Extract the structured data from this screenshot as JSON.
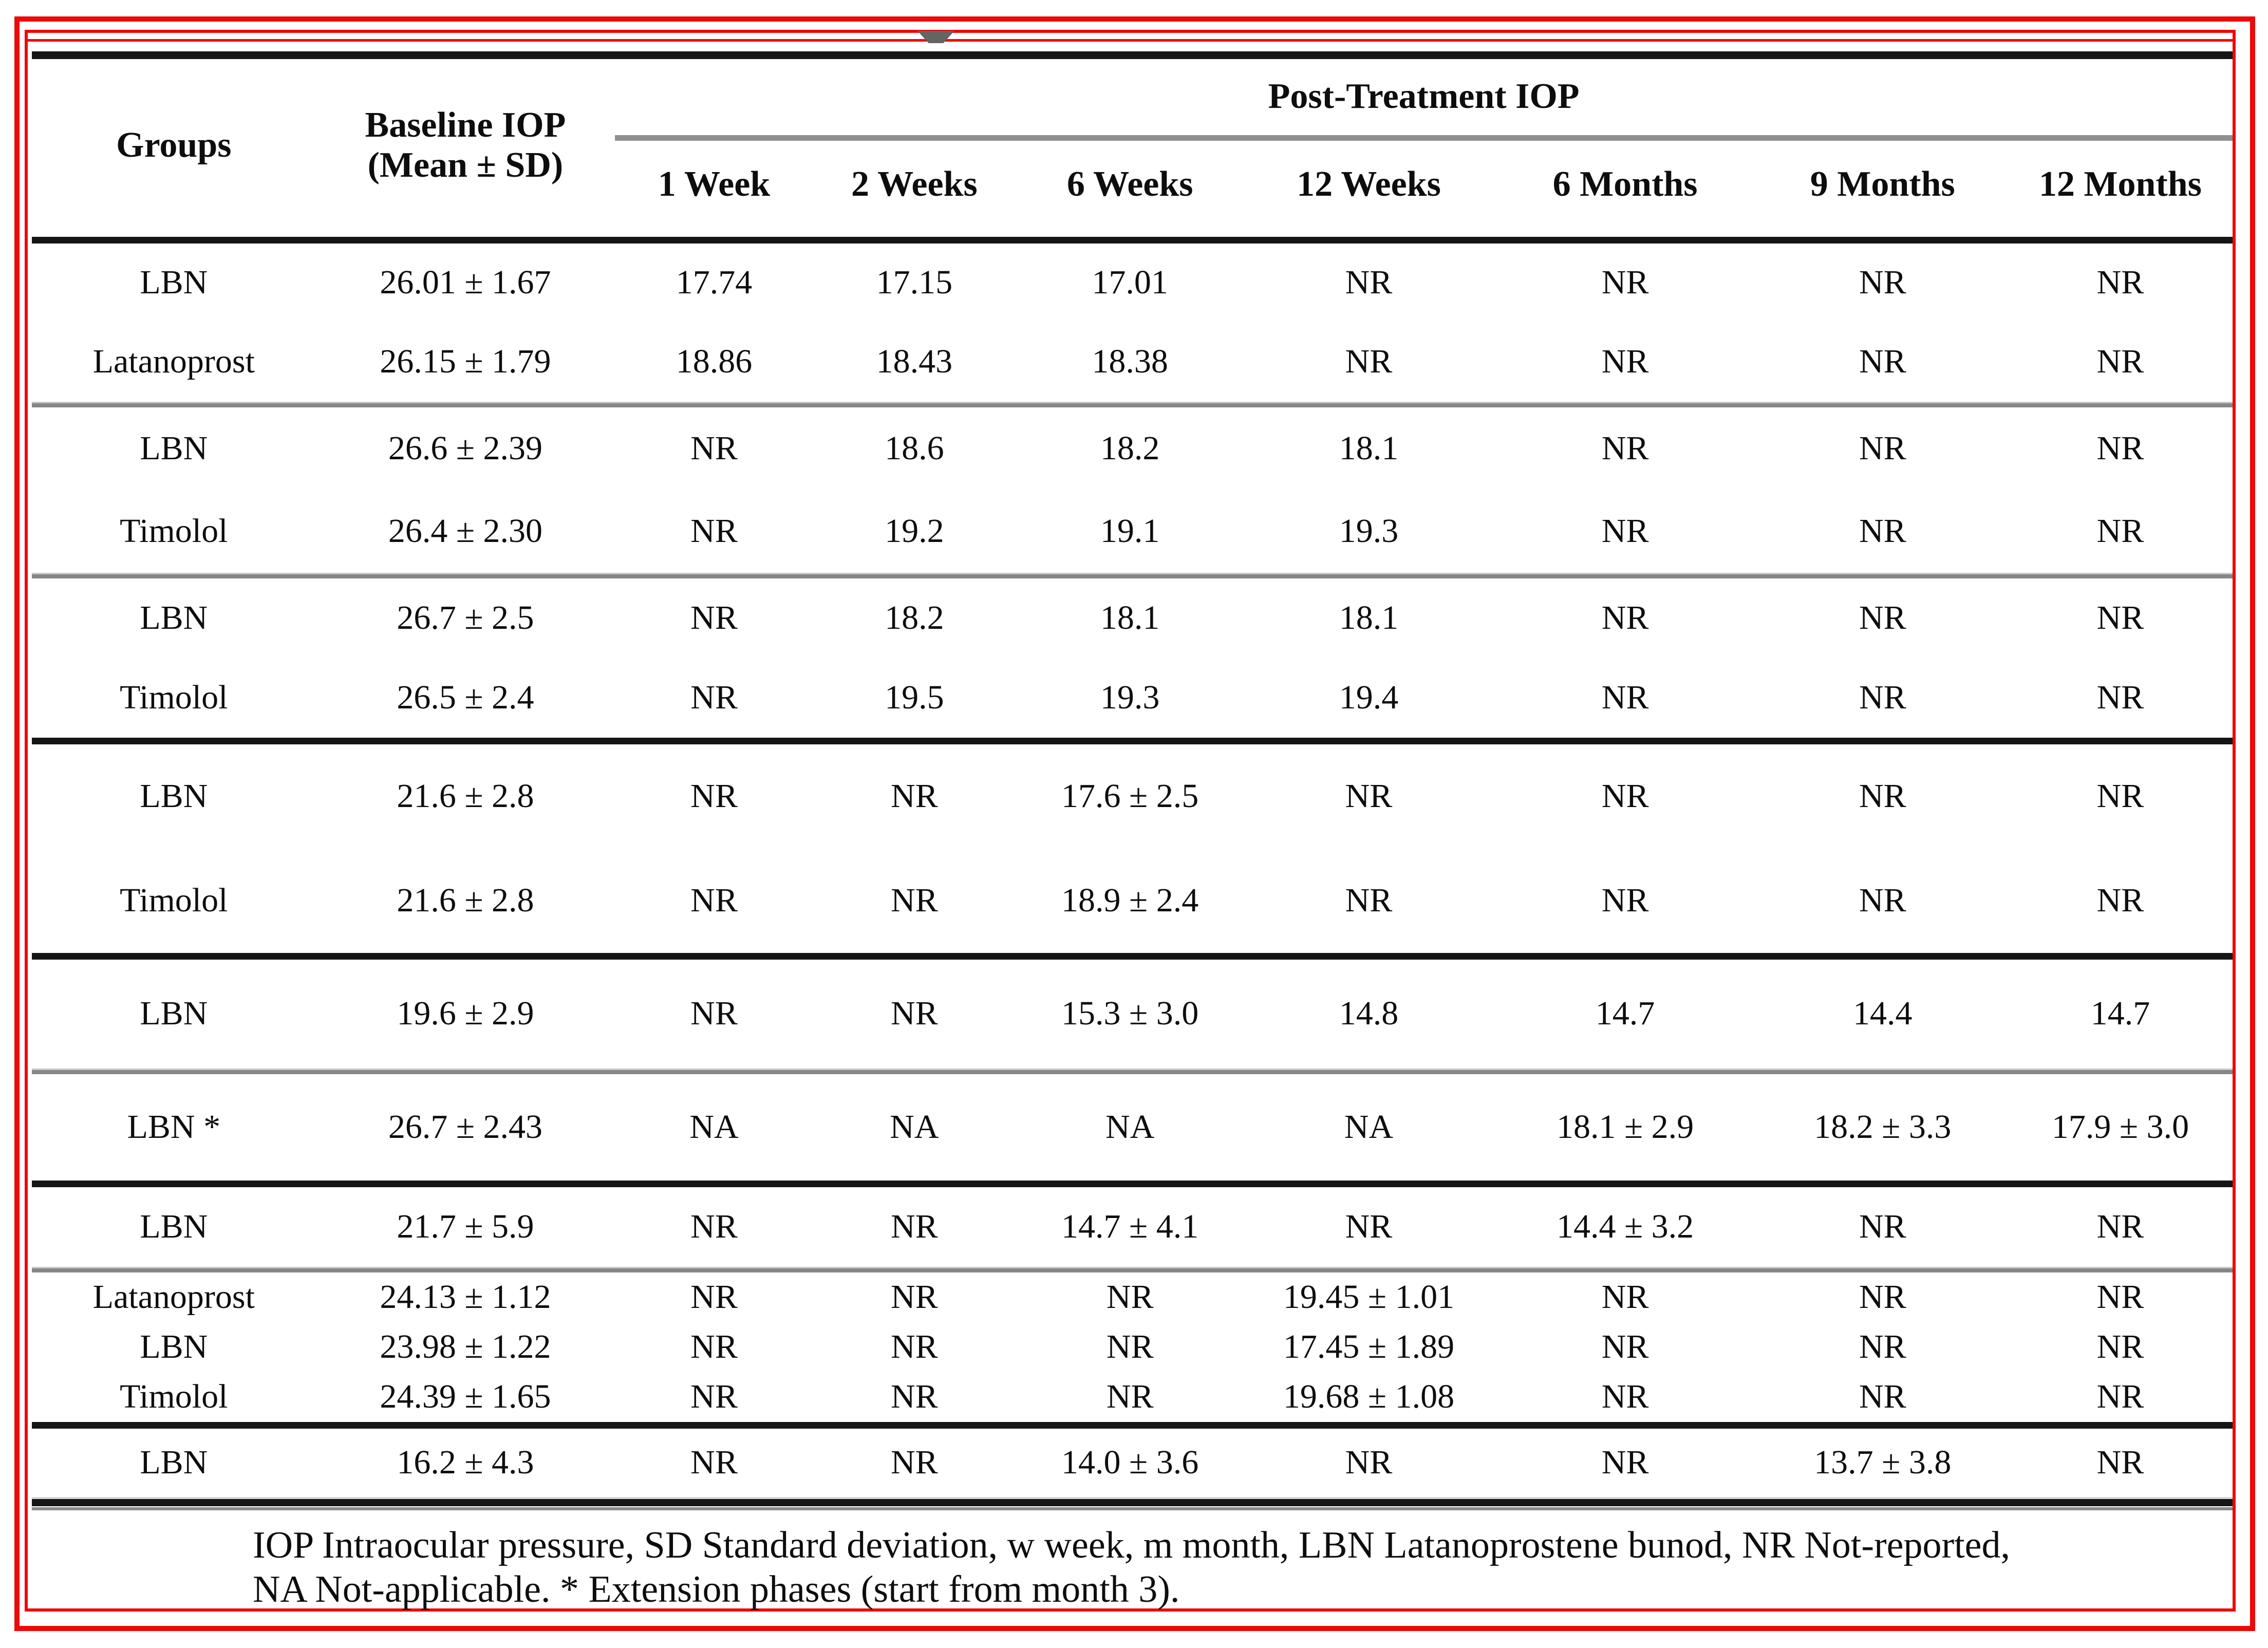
{
  "colors": {
    "annotation_red": "#ee0808",
    "rule_black": "#151515",
    "rule_gray": "#8a8a8a"
  },
  "table": {
    "span_header": "Post-Treatment IOP",
    "col_headers": {
      "groups": "Groups",
      "baseline_line1": "Baseline IOP",
      "baseline_line2": "(Mean ± SD)",
      "times": [
        "1 Week",
        "2 Weeks",
        "6 Weeks",
        "12 Weeks",
        "6 Months",
        "9 Months",
        "12 Months"
      ]
    },
    "groups": [
      {
        "separator": "gray",
        "rows": [
          {
            "label": "LBN",
            "baseline": "26.01 ± 1.67",
            "values": [
              "17.74",
              "17.15",
              "17.01",
              "NR",
              "NR",
              "NR",
              "NR"
            ]
          },
          {
            "label": "Latanoprost",
            "baseline": "26.15 ± 1.79",
            "values": [
              "18.86",
              "18.43",
              "18.38",
              "NR",
              "NR",
              "NR",
              "NR"
            ]
          }
        ]
      },
      {
        "separator": "gray",
        "rows": [
          {
            "label": "LBN",
            "baseline": "26.6 ± 2.39",
            "values": [
              "NR",
              "18.6",
              "18.2",
              "18.1",
              "NR",
              "NR",
              "NR"
            ]
          },
          {
            "label": "Timolol",
            "baseline": "26.4 ± 2.30",
            "values": [
              "NR",
              "19.2",
              "19.1",
              "19.3",
              "NR",
              "NR",
              "NR"
            ]
          }
        ]
      },
      {
        "separator": "black",
        "rows": [
          {
            "label": "LBN",
            "baseline": "26.7 ± 2.5",
            "values": [
              "NR",
              "18.2",
              "18.1",
              "18.1",
              "NR",
              "NR",
              "NR"
            ]
          },
          {
            "label": "Timolol",
            "baseline": "26.5 ± 2.4",
            "values": [
              "NR",
              "19.5",
              "19.3",
              "19.4",
              "NR",
              "NR",
              "NR"
            ]
          }
        ]
      },
      {
        "separator": "black",
        "rows": [
          {
            "label": "LBN",
            "baseline": "21.6 ± 2.8",
            "values": [
              "NR",
              "NR",
              "17.6 ± 2.5",
              "NR",
              "NR",
              "NR",
              "NR"
            ]
          },
          {
            "label": "Timolol",
            "baseline": "21.6 ± 2.8",
            "values": [
              "NR",
              "NR",
              "18.9 ± 2.4",
              "NR",
              "NR",
              "NR",
              "NR"
            ]
          }
        ]
      },
      {
        "separator": "gray",
        "rows": [
          {
            "label": "LBN",
            "baseline": "19.6 ± 2.9",
            "values": [
              "NR",
              "NR",
              "15.3 ± 3.0",
              "14.8",
              "14.7",
              "14.4",
              "14.7"
            ]
          }
        ]
      },
      {
        "separator": "black",
        "rows": [
          {
            "label": "LBN *",
            "baseline": "26.7 ± 2.43",
            "values": [
              "NA",
              "NA",
              "NA",
              "NA",
              "18.1 ± 2.9",
              "18.2 ± 3.3",
              "17.9 ± 3.0"
            ]
          }
        ]
      },
      {
        "separator": "gray",
        "rows": [
          {
            "label": "LBN",
            "baseline": "21.7 ± 5.9",
            "values": [
              "NR",
              "NR",
              "14.7 ± 4.1",
              "NR",
              "14.4 ± 3.2",
              "NR",
              "NR"
            ]
          }
        ]
      },
      {
        "separator": "black",
        "rows": [
          {
            "label": "Latanoprost",
            "baseline": "24.13 ± 1.12",
            "values": [
              "NR",
              "NR",
              "NR",
              "19.45 ± 1.01",
              "NR",
              "NR",
              "NR"
            ]
          },
          {
            "label": "LBN",
            "baseline": "23.98 ± 1.22",
            "values": [
              "NR",
              "NR",
              "NR",
              "17.45 ± 1.89",
              "NR",
              "NR",
              "NR"
            ]
          },
          {
            "label": "Timolol",
            "baseline": "24.39 ± 1.65",
            "values": [
              "NR",
              "NR",
              "NR",
              "19.68 ± 1.08",
              "NR",
              "NR",
              "NR"
            ]
          }
        ]
      },
      {
        "separator": "double",
        "rows": [
          {
            "label": "LBN",
            "baseline": "16.2 ± 4.3",
            "values": [
              "NR",
              "NR",
              "14.0 ± 3.6",
              "NR",
              "NR",
              "13.7 ± 3.8",
              "NR"
            ]
          }
        ]
      }
    ],
    "footnote_line1": "IOP Intraocular pressure, SD Standard deviation, w week, m month, LBN Latanoprostene bunod, NR Not-reported,",
    "footnote_line2": "NA Not-applicable. * Extension phases (start from month 3)."
  }
}
